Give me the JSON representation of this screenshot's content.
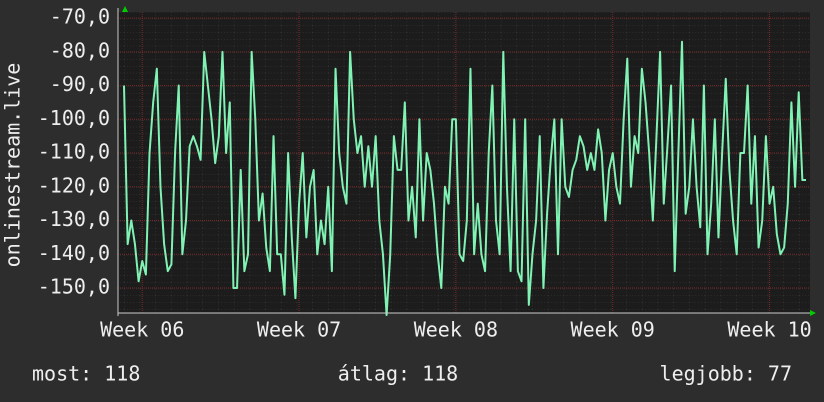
{
  "chart_data": {
    "type": "line",
    "y_label": "onlinestream.live",
    "categories": [
      null,
      null,
      null,
      null,
      null,
      "Week 06",
      null,
      null,
      null,
      null,
      null,
      null,
      null,
      null,
      null,
      null,
      null,
      null,
      null,
      null,
      null,
      null,
      null,
      null,
      null,
      null,
      null,
      null,
      null,
      null,
      null,
      null,
      null,
      null,
      null,
      null,
      null,
      null,
      null,
      null,
      null,
      null,
      null,
      null,
      null,
      null,
      null,
      null,
      "Week 07",
      null,
      null,
      null,
      null,
      null,
      null,
      null,
      null,
      null,
      null,
      null,
      null,
      null,
      null,
      null,
      null,
      null,
      null,
      null,
      null,
      null,
      null,
      null,
      null,
      null,
      null,
      null,
      null,
      null,
      null,
      null,
      null,
      null,
      null,
      null,
      null,
      null,
      null,
      null,
      null,
      null,
      null,
      "Week 08",
      null,
      null,
      null,
      null,
      null,
      null,
      null,
      null,
      null,
      null,
      null,
      null,
      null,
      null,
      null,
      null,
      null,
      null,
      null,
      null,
      null,
      null,
      null,
      null,
      null,
      null,
      null,
      null,
      null,
      null,
      null,
      null,
      null,
      null,
      null,
      null,
      null,
      null,
      null,
      null,
      null,
      null,
      "Week 09",
      null,
      null,
      null,
      null,
      null,
      null,
      null,
      null,
      null,
      null,
      null,
      null,
      null,
      null,
      null,
      null,
      null,
      null,
      null,
      null,
      null,
      null,
      null,
      null,
      null,
      null,
      null,
      null,
      null,
      null,
      null,
      null,
      null,
      null,
      null,
      null,
      null,
      null,
      null,
      null,
      null,
      null,
      "Week 10",
      null,
      null,
      null,
      null,
      null,
      null,
      null,
      null,
      null,
      null
    ],
    "values": [
      -90,
      -137,
      -130,
      -137,
      -148,
      -142,
      -146,
      -110,
      -95,
      -85,
      -120,
      -137,
      -145,
      -143,
      -110,
      -90,
      -140,
      -130,
      -108,
      -105,
      -108,
      -112,
      -80,
      -90,
      -100,
      -113,
      -105,
      -80,
      -110,
      -95,
      -150,
      -150,
      -115,
      -145,
      -140,
      -80,
      -100,
      -130,
      -122,
      -138,
      -145,
      -105,
      -140,
      -140,
      -152,
      -110,
      -135,
      -153,
      -125,
      -110,
      -135,
      -120,
      -115,
      -140,
      -130,
      -137,
      -120,
      -145,
      -85,
      -110,
      -120,
      -125,
      -80,
      -100,
      -110,
      -105,
      -120,
      -108,
      -120,
      -105,
      -130,
      -140,
      -158,
      -140,
      -105,
      -115,
      -115,
      -95,
      -130,
      -120,
      -135,
      -100,
      -130,
      -110,
      -115,
      -125,
      -140,
      -150,
      -120,
      -125,
      -100,
      -100,
      -140,
      -142,
      -130,
      -85,
      -140,
      -125,
      -140,
      -145,
      -110,
      -90,
      -130,
      -140,
      -80,
      -120,
      -145,
      -100,
      -145,
      -148,
      -100,
      -155,
      -140,
      -130,
      -105,
      -150,
      -128,
      -112,
      -100,
      -140,
      -100,
      -120,
      -123,
      -115,
      -112,
      -105,
      -108,
      -115,
      -110,
      -115,
      -103,
      -110,
      -130,
      -115,
      -110,
      -120,
      -125,
      -100,
      -82,
      -120,
      -105,
      -110,
      -85,
      -95,
      -110,
      -130,
      -105,
      -80,
      -125,
      -108,
      -90,
      -145,
      -110,
      -77,
      -128,
      -120,
      -100,
      -120,
      -132,
      -90,
      -140,
      -125,
      -100,
      -135,
      -110,
      -88,
      -115,
      -130,
      -140,
      -110,
      -110,
      -90,
      -125,
      -105,
      -138,
      -130,
      -105,
      -125,
      -120,
      -134,
      -140,
      -138,
      -125,
      -95,
      -120,
      -92,
      -118,
      -118
    ],
    "color": "#7ff2b4",
    "ylim": [
      -157.4,
      -68.2
    ],
    "yticks": [
      {
        "value": -150,
        "label": "-150,0"
      },
      {
        "value": -140,
        "label": "-140,0"
      },
      {
        "value": -130,
        "label": "-130,0"
      },
      {
        "value": -120,
        "label": "-120,0"
      },
      {
        "value": -110,
        "label": "-110,0"
      },
      {
        "value": -100,
        "label": "-100,0"
      },
      {
        "value": -90,
        "label": "-90,0"
      },
      {
        "value": -80,
        "label": "-80,0"
      },
      {
        "value": -70,
        "label": "-70,0"
      }
    ],
    "grid": true,
    "footer": [
      "most: 118",
      "átlag: 118",
      "legjobb: 77"
    ]
  }
}
